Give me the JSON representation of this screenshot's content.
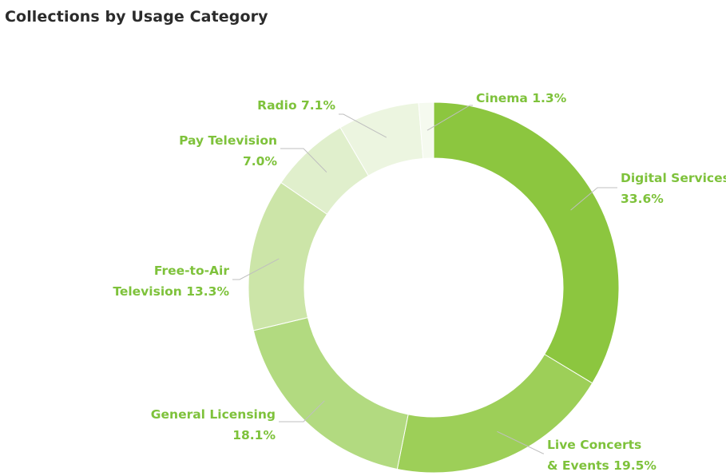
{
  "title": "Collections by Usage Category",
  "colors": {
    "label_text": "#7ec23b",
    "leader_line": "#bfbfbf",
    "title_text": "#2b2b2b"
  },
  "chart_data": {
    "type": "pie",
    "style": "donut",
    "title": "Collections by Usage Category",
    "unit": "%",
    "start": "12 o'clock",
    "direction": "clockwise",
    "slices": [
      {
        "category": "Digital Services",
        "value": 33.6,
        "label_lines": [
          "Digital Services",
          "33.6%"
        ],
        "color": "#8cc63f"
      },
      {
        "category": "Live Concerts & Events",
        "value": 19.5,
        "label_lines": [
          "Live Concerts",
          "& Events  19.5%"
        ],
        "color": "#9dcf58"
      },
      {
        "category": "General Licensing",
        "value": 18.1,
        "label_lines": [
          "General Licensing",
          "18.1%"
        ],
        "color": "#b2da80"
      },
      {
        "category": "Free-to-Air Television",
        "value": 13.3,
        "label_lines": [
          "Free-to-Air",
          "Television  13.3%"
        ],
        "color": "#cce5a8"
      },
      {
        "category": "Pay Television",
        "value": 7.0,
        "label_lines": [
          "Pay Television",
          "7.0%"
        ],
        "color": "#e0efcc"
      },
      {
        "category": "Radio",
        "value": 7.1,
        "label_lines": [
          "Radio  7.1%"
        ],
        "color": "#ecf5e0"
      },
      {
        "category": "Cinema",
        "value": 1.3,
        "label_lines": [
          "Cinema 1.3%"
        ],
        "color": "#f5faef"
      }
    ]
  }
}
